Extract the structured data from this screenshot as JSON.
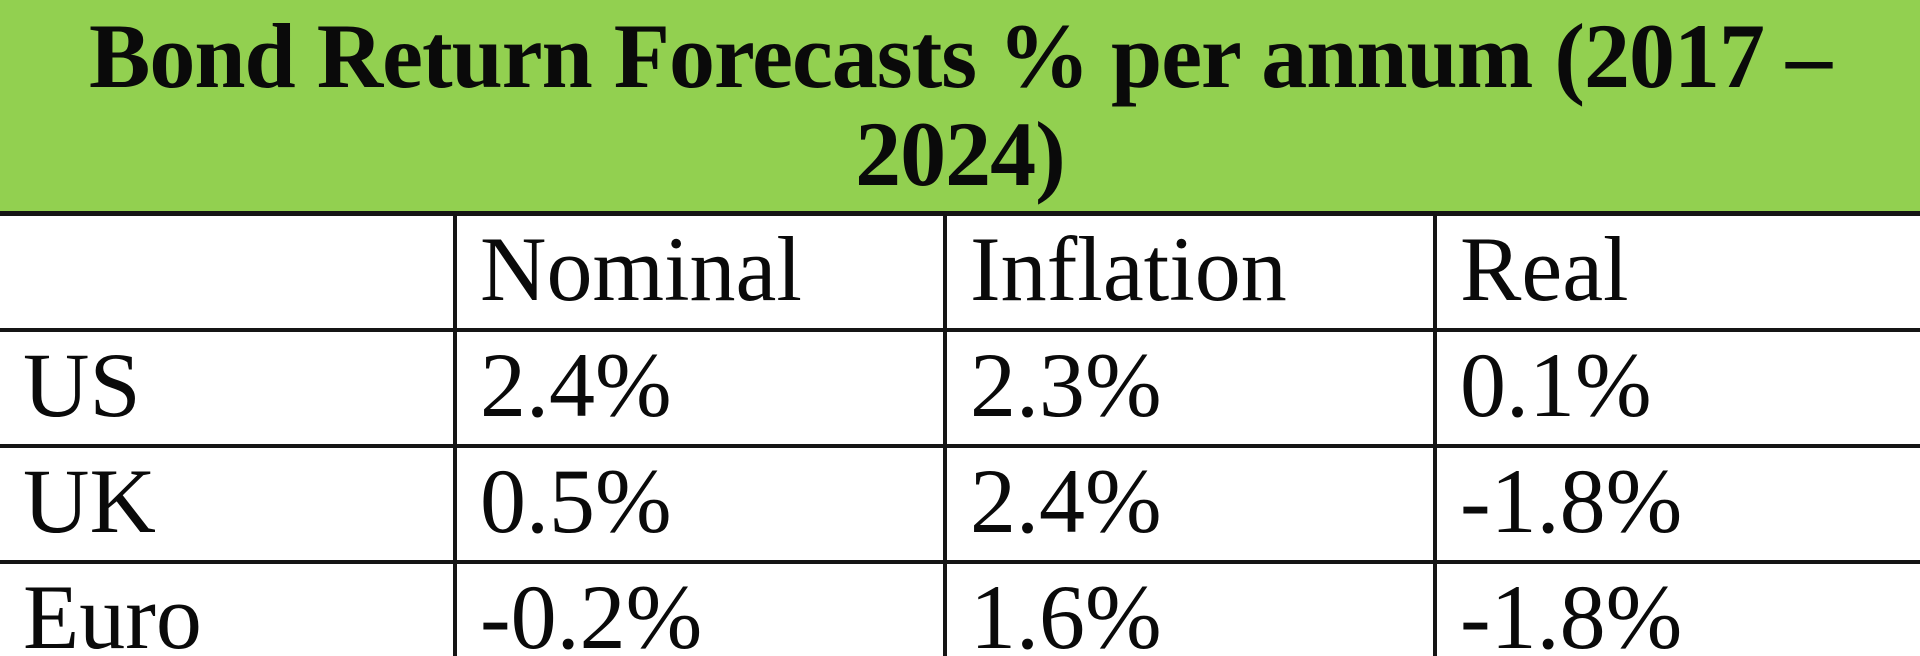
{
  "title": {
    "full": "Bond Return Forecasts % per annum (2017 – 2024)",
    "line1": "Bond Return Forecasts % per annum (2017 –",
    "line2": "2024)"
  },
  "colors": {
    "title_bg": "#92d050",
    "border": "#151515",
    "text": "#0a0a0a",
    "cell_bg": "#ffffff"
  },
  "chart_data": {
    "type": "table",
    "title": "Bond Return Forecasts % per annum (2017 – 2024)",
    "columns": [
      "",
      "Nominal",
      "Inflation",
      "Real"
    ],
    "rows": [
      {
        "label": "US",
        "values": [
          "2.4%",
          "2.3%",
          "0.1%"
        ]
      },
      {
        "label": "UK",
        "values": [
          "0.5%",
          "2.4%",
          "-1.8%"
        ]
      },
      {
        "label": "Euro",
        "values": [
          "-0.2%",
          "1.6%",
          "-1.8%"
        ]
      }
    ]
  }
}
